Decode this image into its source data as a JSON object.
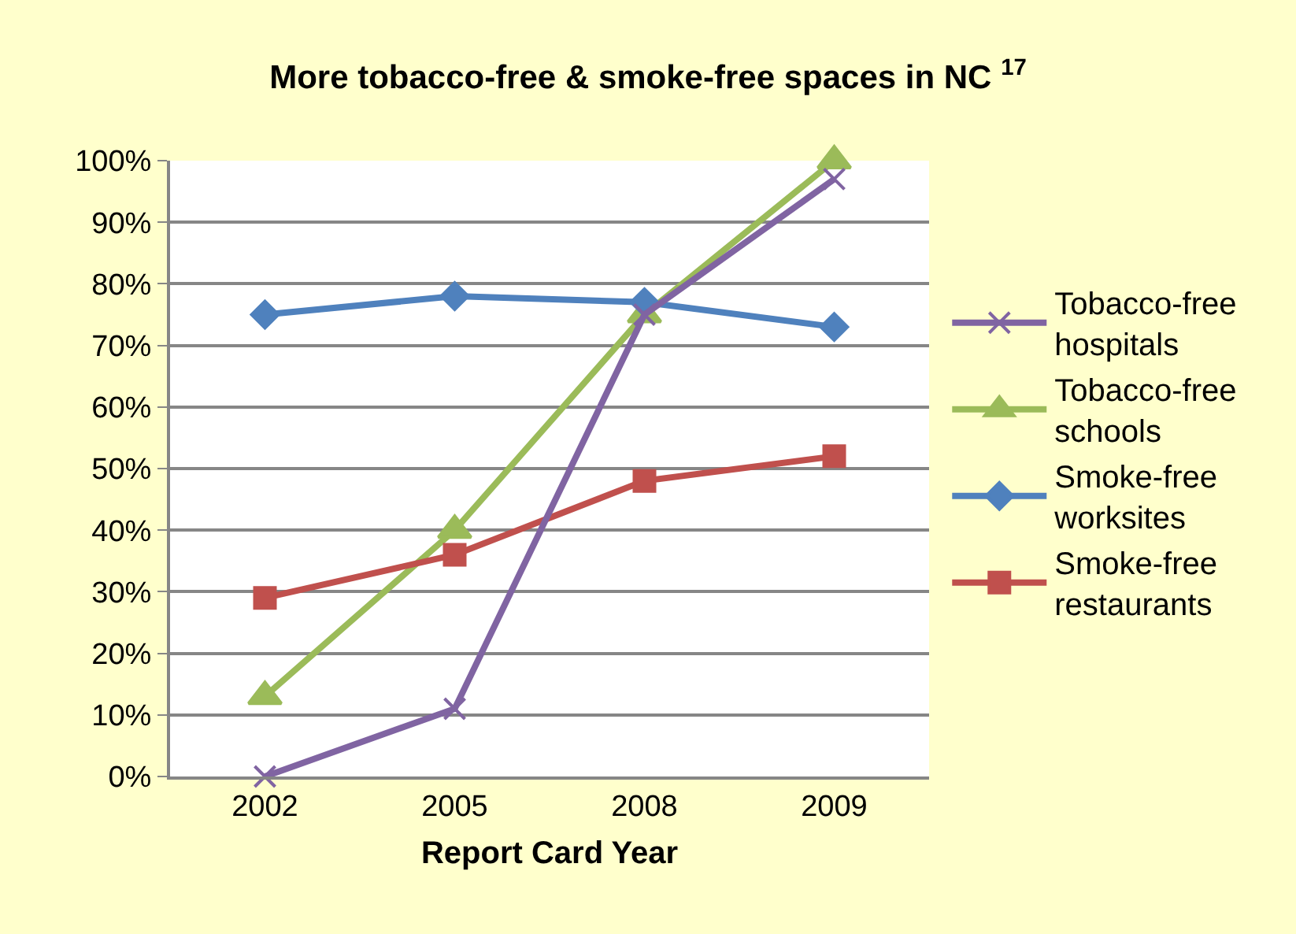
{
  "chart_data": {
    "type": "line",
    "title": "More tobacco-free & smoke-free spaces in NC $^{17}$",
    "xlabel": "Report Card Year",
    "categories": [
      "2002",
      "2005",
      "2008",
      "2009"
    ],
    "series": [
      {
        "name": "Tobacco-free hospitals",
        "color": "#8064a2",
        "marker": "cross",
        "values": [
          0,
          11,
          75,
          97
        ]
      },
      {
        "name": "Tobacco-free schools",
        "color": "#9bbb59",
        "marker": "triangle",
        "values": [
          13,
          40,
          75,
          100
        ]
      },
      {
        "name": "Smoke-free worksites",
        "color": "#4f81bd",
        "marker": "diamond",
        "values": [
          75,
          78,
          77,
          73
        ]
      },
      {
        "name": "Smoke-free restaurants",
        "color": "#c0504d",
        "marker": "square",
        "values": [
          29,
          36,
          48,
          52
        ]
      }
    ],
    "ylim": [
      0,
      100
    ],
    "yticks": [
      {
        "value": 0,
        "label": "0%"
      },
      {
        "value": 10,
        "label": "10%"
      },
      {
        "value": 20,
        "label": "20%"
      },
      {
        "value": 30,
        "label": "30%"
      },
      {
        "value": 40,
        "label": "40%"
      },
      {
        "value": 50,
        "label": "50%"
      },
      {
        "value": 60,
        "label": "60%"
      },
      {
        "value": 70,
        "label": "70%"
      },
      {
        "value": 80,
        "label": "80%"
      },
      {
        "value": 90,
        "label": "90%"
      },
      {
        "value": 100,
        "label": "100%"
      }
    ],
    "grid": "y",
    "legend": "right",
    "line_style": "solid"
  }
}
